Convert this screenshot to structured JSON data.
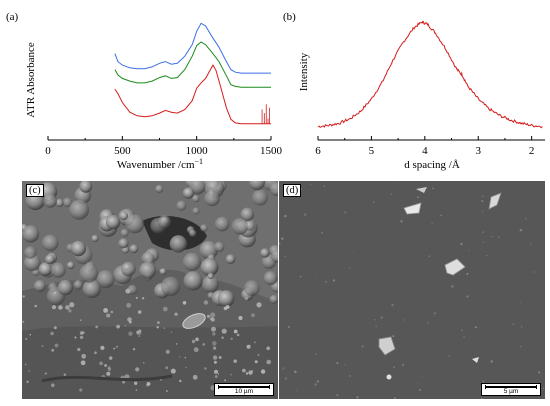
{
  "figure": {
    "panels": {
      "a": {
        "tag": "(a)"
      },
      "b": {
        "tag": "(b)"
      },
      "c": {
        "tag": "(c)",
        "scale_label": "10 µm"
      },
      "d": {
        "tag": "(d)",
        "scale_label": "5 µm"
      }
    }
  },
  "chart_data": [
    {
      "type": "line",
      "panel": "a",
      "xlabel": "Wavenumber /cm⁻¹",
      "ylabel": "ATR Absorbance",
      "xlim": [
        0,
        1500
      ],
      "xticks": [
        "0",
        "500",
        "1000",
        "1500"
      ],
      "y_ticks_shown": false,
      "legend": "none",
      "series": [
        {
          "color": "#3c6ee8",
          "x": [
            450,
            470,
            500,
            550,
            600,
            650,
            700,
            750,
            790,
            830,
            870,
            920,
            970,
            1000,
            1030,
            1060,
            1100,
            1150,
            1200,
            1230,
            1260,
            1300,
            1500
          ],
          "y": [
            0.95,
            0.86,
            0.82,
            0.79,
            0.78,
            0.78,
            0.8,
            0.84,
            0.86,
            0.83,
            0.84,
            0.92,
            1.05,
            1.2,
            1.29,
            1.26,
            1.15,
            1.02,
            0.86,
            0.77,
            0.74,
            0.73,
            0.73
          ]
        },
        {
          "color": "#1a8a1a",
          "x": [
            450,
            470,
            500,
            550,
            600,
            650,
            700,
            750,
            790,
            830,
            870,
            920,
            970,
            1000,
            1030,
            1060,
            1100,
            1150,
            1200,
            1230,
            1260,
            1300,
            1500
          ],
          "y": [
            0.77,
            0.71,
            0.67,
            0.64,
            0.62,
            0.62,
            0.64,
            0.68,
            0.7,
            0.67,
            0.68,
            0.77,
            0.92,
            1.04,
            1.08,
            1.05,
            0.97,
            0.86,
            0.7,
            0.6,
            0.58,
            0.57,
            0.57
          ]
        },
        {
          "color": "#d41c1c",
          "x": [
            450,
            470,
            500,
            550,
            600,
            650,
            700,
            750,
            790,
            830,
            870,
            920,
            970,
            1000,
            1030,
            1060,
            1090,
            1110,
            1130,
            1160,
            1200,
            1230,
            1260,
            1300,
            1500
          ],
          "y": [
            0.55,
            0.5,
            0.4,
            0.29,
            0.25,
            0.24,
            0.25,
            0.28,
            0.31,
            0.29,
            0.28,
            0.32,
            0.42,
            0.56,
            0.62,
            0.67,
            0.76,
            0.82,
            0.76,
            0.58,
            0.34,
            0.21,
            0.17,
            0.16,
            0.16
          ]
        }
      ]
    },
    {
      "type": "line",
      "panel": "b",
      "xlabel": "d spacing /Å",
      "ylabel": "Intensity",
      "xlim": [
        6,
        1.75
      ],
      "xticks": [
        "6",
        "5",
        "4",
        "3",
        "2"
      ],
      "y_ticks_shown": false,
      "legend": "none",
      "series": [
        {
          "color": "#d41c1c",
          "x": [
            6.0,
            5.8,
            5.6,
            5.4,
            5.2,
            5.0,
            4.8,
            4.6,
            4.4,
            4.2,
            4.05,
            3.95,
            3.8,
            3.6,
            3.4,
            3.3,
            3.2,
            3.0,
            2.8,
            2.6,
            2.4,
            2.2,
            2.0,
            1.8
          ],
          "y": [
            0.05,
            0.06,
            0.08,
            0.12,
            0.19,
            0.3,
            0.45,
            0.65,
            0.82,
            0.95,
            1.0,
            0.98,
            0.9,
            0.75,
            0.57,
            0.52,
            0.42,
            0.3,
            0.21,
            0.15,
            0.11,
            0.08,
            0.06,
            0.05
          ]
        }
      ]
    }
  ]
}
